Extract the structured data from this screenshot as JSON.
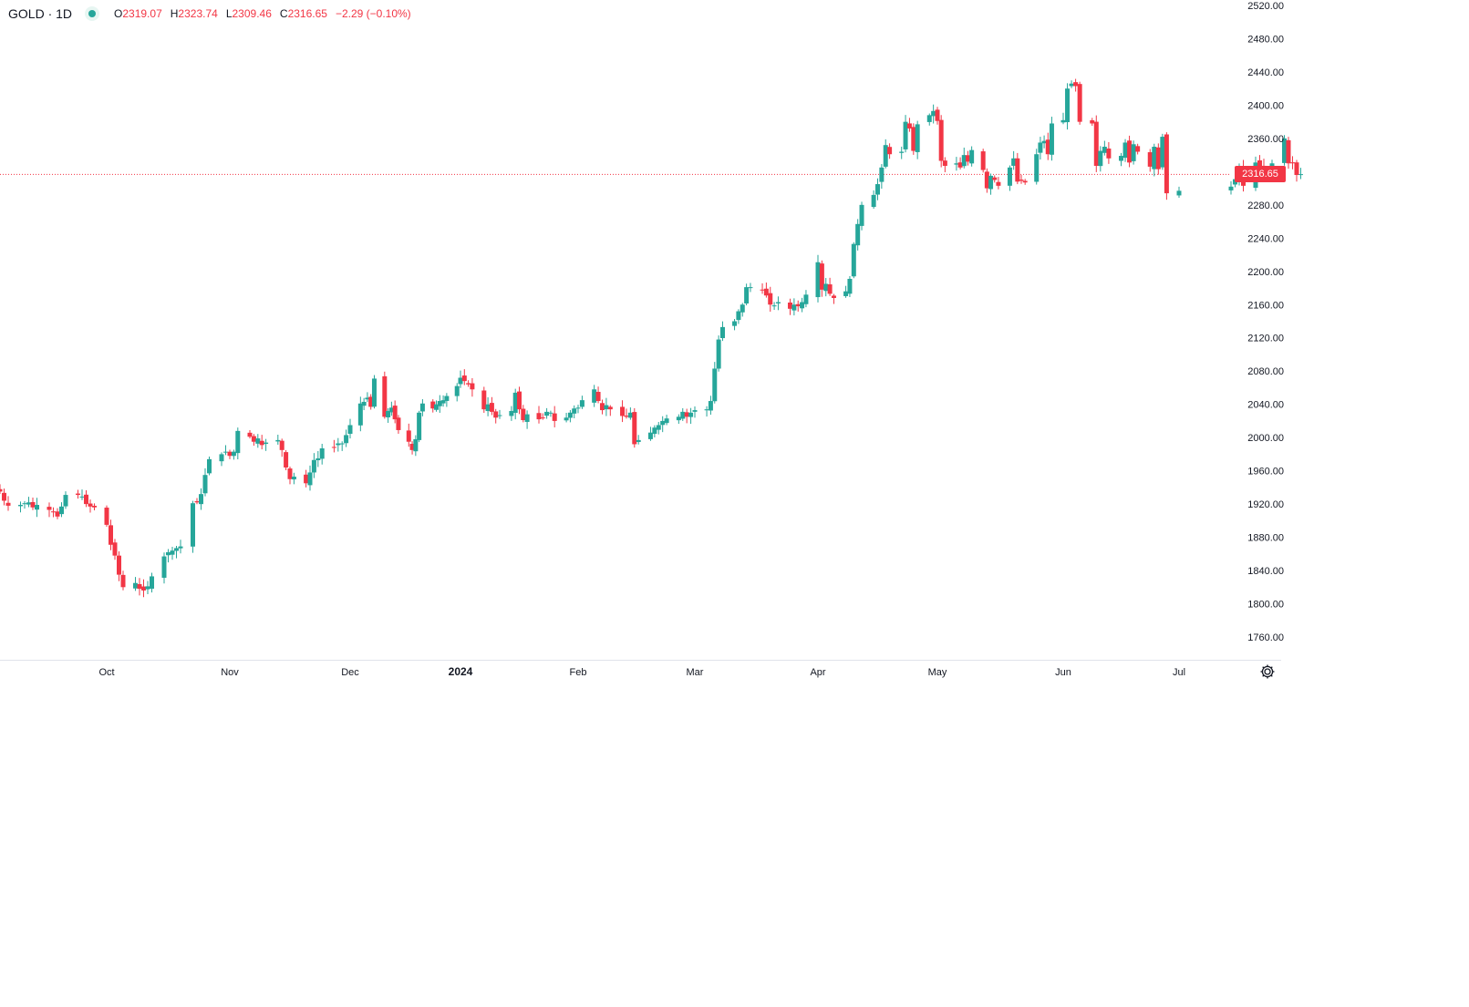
{
  "legend": {
    "symbol": "GOLD · 1D",
    "open_label": "O",
    "open": "2319.07",
    "high_label": "H",
    "high": "2323.74",
    "low_label": "L",
    "low": "2309.46",
    "close_label": "C",
    "close": "2316.65",
    "change": "−2.29 (−0.10%)"
  },
  "price_tag": "2316.65",
  "icons": {
    "settings": "gear-icon",
    "status": "status-dot-icon"
  },
  "colors": {
    "up": "#26a69a",
    "down": "#f23645",
    "axis_text": "#131722",
    "crosshair": "#f23645"
  },
  "chart_data": {
    "type": "candlestick",
    "title": "GOLD · 1D",
    "ylim": [
      1745,
      2520
    ],
    "y_ticks": [
      "2520.00",
      "2480.00",
      "2440.00",
      "2400.00",
      "2360.00",
      "2320.00",
      "2280.00",
      "2240.00",
      "2200.00",
      "2160.00",
      "2120.00",
      "2080.00",
      "2040.00",
      "2000.00",
      "1960.00",
      "1920.00",
      "1880.00",
      "1840.00",
      "1800.00",
      "1760.00"
    ],
    "x_ticks": [
      {
        "label": "Oct",
        "date": "2023-10-02"
      },
      {
        "label": "Nov",
        "date": "2023-11-01"
      },
      {
        "label": "Dec",
        "date": "2023-12-01"
      },
      {
        "label": "2024",
        "date": "2024-01-02",
        "bold": true
      },
      {
        "label": "Feb",
        "date": "2024-02-01"
      },
      {
        "label": "Mar",
        "date": "2024-03-01"
      },
      {
        "label": "Apr",
        "date": "2024-04-01"
      },
      {
        "label": "May",
        "date": "2024-05-01"
      },
      {
        "label": "Jun",
        "date": "2024-06-03"
      },
      {
        "label": "Jul",
        "date": "2024-07-01"
      }
    ],
    "last_price": 2316.65,
    "close_series": [
      1935,
      1924,
      1918,
      1919,
      1921,
      1922,
      1916,
      1919,
      1913,
      1910,
      1905,
      1917,
      1931,
      1931,
      1929,
      1920,
      1917,
      1916,
      1895,
      1871,
      1858,
      1835,
      1820,
      1825,
      1818,
      1816,
      1821,
      1833,
      1857,
      1862,
      1864,
      1867,
      1869,
      1921,
      1922,
      1932,
      1955,
      1974,
      1980,
      1983,
      1978,
      1983,
      2008,
      2001,
      1995,
      1999,
      1991,
      1994,
      1997,
      1985,
      1964,
      1950,
      1953,
      1945,
      1958,
      1973,
      1975,
      1987,
      1988,
      1993,
      1993,
      2003,
      2015,
      2041,
      2043,
      2048,
      2037,
      2071,
      2025,
      2032,
      2036,
      2022,
      2009,
      1995,
      1985,
      1998,
      2030,
      2041,
      2035,
      2040,
      2044,
      2045,
      2050,
      2062,
      2072,
      2068,
      2064,
      2058,
      2034,
      2040,
      2031,
      2024,
      2027,
      2032,
      2054,
      2034,
      2021,
      2028,
      2022,
      2024,
      2031,
      2030,
      2020,
      2024,
      2030,
      2035,
      2036,
      2045,
      2058,
      2044,
      2033,
      2039,
      2034,
      2026,
      2025,
      2030,
      1992,
      1997,
      2006,
      2012,
      2015,
      2020,
      2023,
      2025,
      2031,
      2025,
      2030,
      2033,
      2034,
      2044,
      2083,
      2118,
      2133,
      2140,
      2152,
      2160,
      2181,
      2181,
      2178,
      2171,
      2160,
      2159,
      2163,
      2155,
      2160,
      2158,
      2163,
      2172,
      2211,
      2178,
      2185,
      2173,
      2168,
      2176,
      2191,
      2233,
      2257,
      2280,
      2292,
      2305,
      2325,
      2352,
      2341,
      2344,
      2380,
      2372,
      2345,
      2377,
      2388,
      2393,
      2381,
      2333,
      2327,
      2330,
      2325,
      2340,
      2332,
      2346,
      2322,
      2300,
      2315,
      2310,
      2303,
      2325,
      2336,
      2308,
      2309,
      2307,
      2341,
      2355,
      2357,
      2341,
      2378,
      2382,
      2420,
      2426,
      2423,
      2380,
      2378,
      2327,
      2345,
      2350,
      2336,
      2339,
      2355,
      2331,
      2353,
      2344,
      2326,
      2350,
      2323,
      2362,
      2294,
      2297,
      2302,
      2311,
      2325,
      2303,
      2331,
      2326,
      2319,
      2316,
      2330,
      2360,
      2330,
      2330,
      2316,
      2317
    ]
  }
}
